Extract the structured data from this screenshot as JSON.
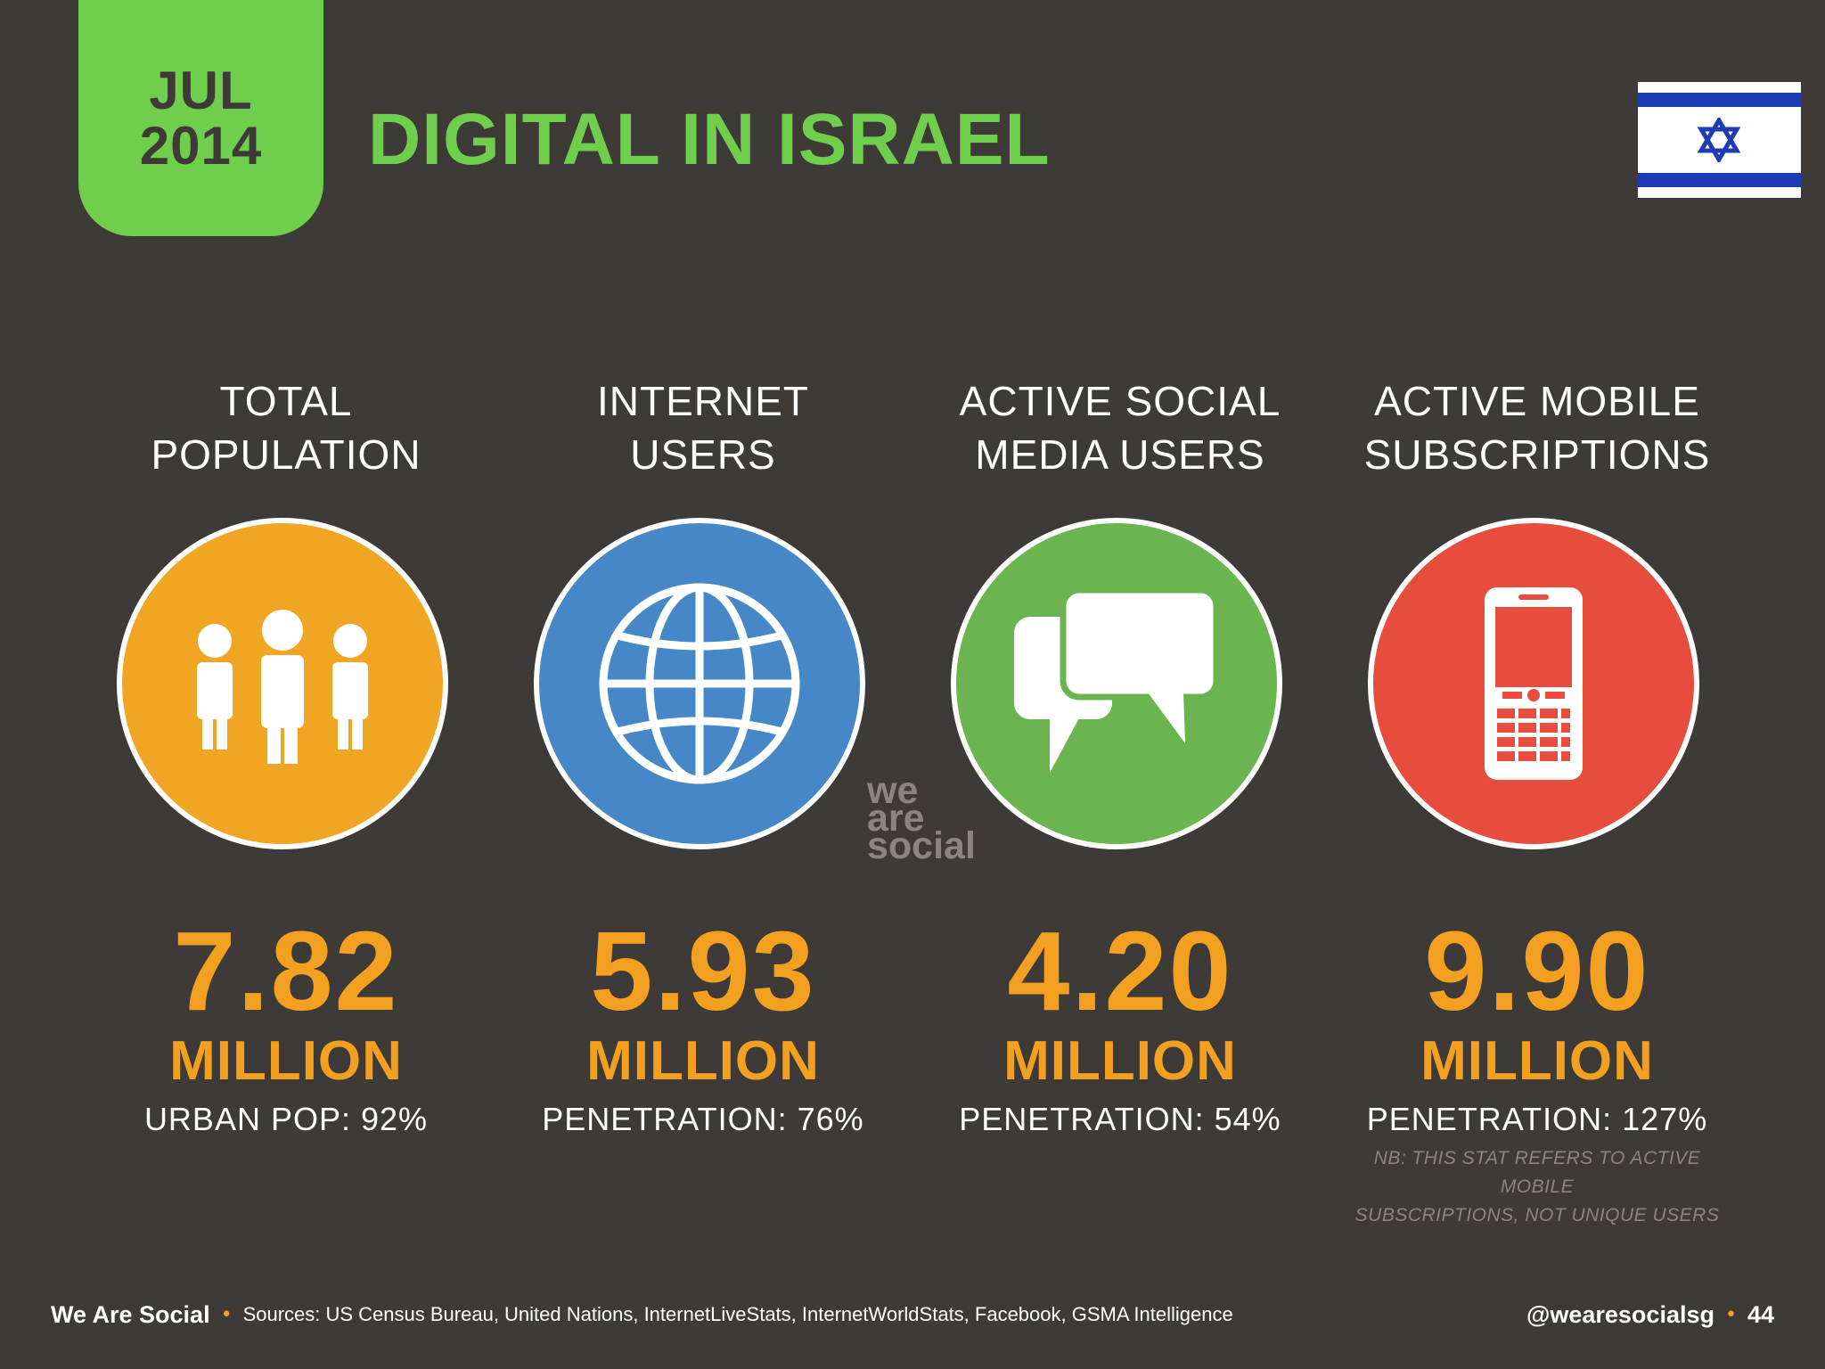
{
  "header": {
    "month": "JUL",
    "year": "2014",
    "title": "DIGITAL IN ISRAEL",
    "flag_icon": "israel-flag-icon"
  },
  "colors": {
    "background": "#3e3a38",
    "accent_green": "#6fcf4d",
    "accent_orange": "#f3a020",
    "population": "#f0a623",
    "internet": "#4688c7",
    "social": "#6ab550",
    "mobile": "#e74c3d",
    "note": "#8a8582"
  },
  "stats": [
    {
      "label_line1": "TOTAL",
      "label_line2": "POPULATION",
      "icon": "people-icon",
      "value": "7.82",
      "unit": "MILLION",
      "sub": "URBAN POP: 92%"
    },
    {
      "label_line1": "INTERNET",
      "label_line2": "USERS",
      "icon": "globe-icon",
      "value": "5.93",
      "unit": "MILLION",
      "sub": "PENETRATION: 76%"
    },
    {
      "label_line1": "ACTIVE SOCIAL",
      "label_line2": "MEDIA USERS",
      "icon": "speech-bubbles-icon",
      "value": "4.20",
      "unit": "MILLION",
      "sub": "PENETRATION: 54%"
    },
    {
      "label_line1": "ACTIVE MOBILE",
      "label_line2": "SUBSCRIPTIONS",
      "icon": "mobile-phone-icon",
      "value": "9.90",
      "unit": "MILLION",
      "sub": "PENETRATION: 127%",
      "note_line1": "NB: THIS STAT REFERS TO ACTIVE MOBILE",
      "note_line2": "SUBSCRIPTIONS, NOT UNIQUE USERS"
    }
  ],
  "watermark": {
    "line1": "we",
    "line2": "are",
    "line3": "social"
  },
  "footer": {
    "brand": "We Are Social",
    "separator": "•",
    "sources": "Sources: US Census Bureau, United Nations, InternetLiveStats, InternetWorldStats, Facebook, GSMA Intelligence",
    "handle": "@wearesocialsg",
    "page": "44"
  }
}
